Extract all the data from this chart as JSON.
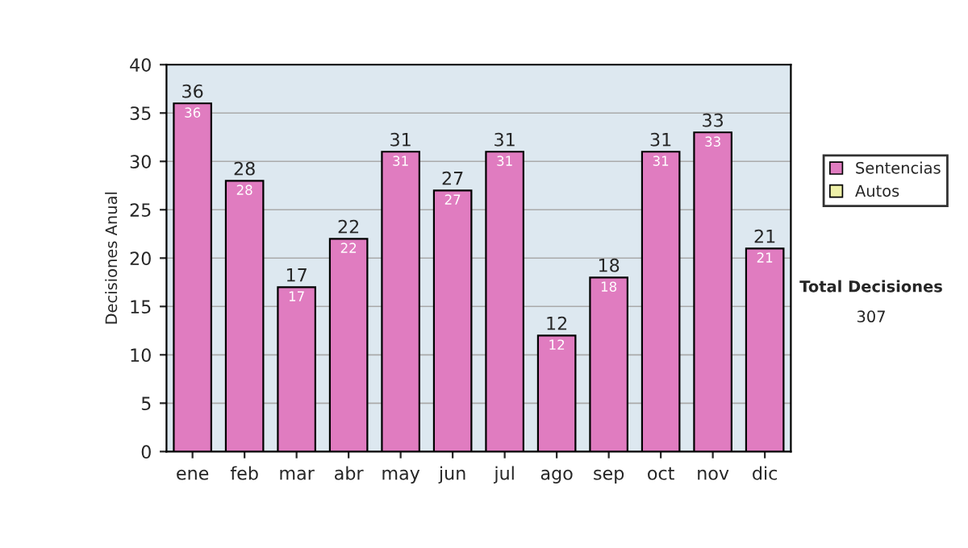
{
  "chart_data": {
    "type": "bar",
    "stacked": true,
    "ylabel": "Decisiones Anual",
    "categories": [
      "ene",
      "feb",
      "mar",
      "abr",
      "may",
      "jun",
      "jul",
      "ago",
      "sep",
      "oct",
      "nov",
      "dic"
    ],
    "series": [
      {
        "name": "Sentencias",
        "color": "#e07cc0",
        "values": [
          36,
          28,
          17,
          22,
          31,
          27,
          31,
          12,
          18,
          31,
          33,
          21
        ],
        "value_labels": [
          "36",
          "28",
          "17",
          "22",
          "31",
          "27",
          "31",
          "12",
          "18",
          "31",
          "33",
          "21"
        ]
      },
      {
        "name": "Autos",
        "color": "#eef0a8",
        "values": [
          null,
          null,
          null,
          null,
          null,
          null,
          null,
          null,
          null,
          null,
          null,
          null
        ]
      }
    ],
    "totals": [
      "36",
      "28",
      "17",
      "22",
      "31",
      "27",
      "31",
      "12",
      "18",
      "31",
      "33",
      "21"
    ],
    "ylim": [
      0,
      40
    ],
    "yticks": [
      0,
      5,
      10,
      15,
      20,
      25,
      30,
      35,
      40
    ],
    "grid": "y",
    "legend": "right",
    "annotations": [
      "Total Decisiones",
      "307"
    ]
  }
}
